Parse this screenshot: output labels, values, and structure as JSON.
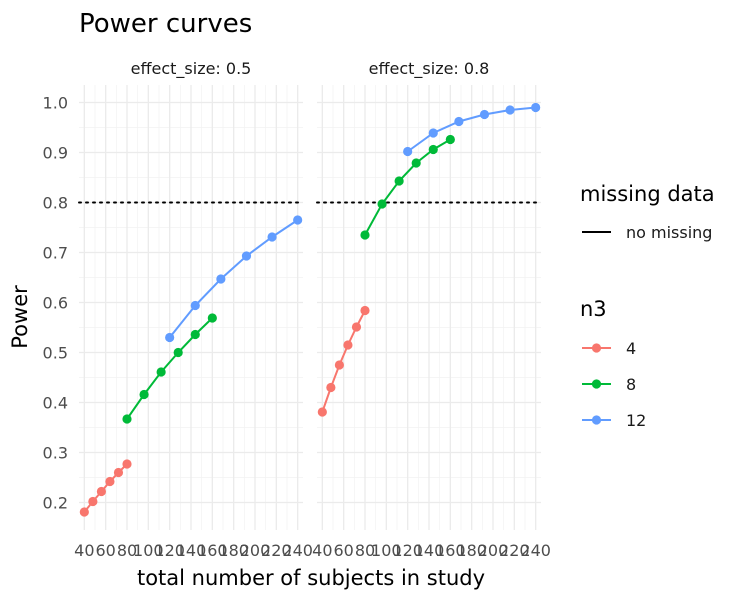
{
  "chart_data": {
    "type": "line",
    "title": "Power curves",
    "xlabel": "total number of subjects in study",
    "ylabel": "Power",
    "xlim": [
      35,
      245
    ],
    "ylim": [
      0.145,
      1.035
    ],
    "x_ticks": [
      40,
      60,
      80,
      100,
      120,
      140,
      160,
      180,
      200,
      220,
      240
    ],
    "y_ticks": [
      0.2,
      0.3,
      0.4,
      0.5,
      0.6,
      0.7,
      0.8,
      0.9,
      1.0
    ],
    "y_tick_labels": [
      "0.2",
      "0.3",
      "0.4",
      "0.5",
      "0.6",
      "0.7",
      "0.8",
      "0.9",
      "1.0"
    ],
    "reference_line": {
      "y": 0.8,
      "style": "dotted"
    },
    "grid": true,
    "facets": [
      {
        "label": "effect_size: 0.5",
        "series": [
          {
            "name": "4",
            "x": [
              40,
              48,
              56,
              64,
              72,
              80
            ],
            "y": [
              0.181,
              0.202,
              0.222,
              0.242,
              0.26,
              0.277
            ]
          },
          {
            "name": "8",
            "x": [
              80,
              96,
              112,
              128,
              144,
              160
            ],
            "y": [
              0.367,
              0.416,
              0.461,
              0.5,
              0.536,
              0.569
            ]
          },
          {
            "name": "12",
            "x": [
              120,
              144,
              168,
              192,
              216,
              240
            ],
            "y": [
              0.53,
              0.594,
              0.647,
              0.693,
              0.731,
              0.765
            ]
          }
        ]
      },
      {
        "label": "effect_size: 0.8",
        "series": [
          {
            "name": "4",
            "x": [
              40,
              48,
              56,
              64,
              72,
              80
            ],
            "y": [
              0.381,
              0.43,
              0.475,
              0.515,
              0.551,
              0.584
            ]
          },
          {
            "name": "8",
            "x": [
              80,
              96,
              112,
              128,
              144,
              160
            ],
            "y": [
              0.735,
              0.797,
              0.843,
              0.879,
              0.906,
              0.926
            ]
          },
          {
            "name": "12",
            "x": [
              120,
              144,
              168,
              192,
              216,
              240
            ],
            "y": [
              0.902,
              0.939,
              0.962,
              0.976,
              0.985,
              0.99
            ]
          }
        ]
      }
    ],
    "legend": {
      "placement": "right",
      "linetype": {
        "title": "missing data",
        "entries": [
          "no missing"
        ]
      },
      "color": {
        "title": "n3",
        "entries": [
          {
            "name": "4",
            "color": "#f8766d"
          },
          {
            "name": "8",
            "color": "#00ba38"
          },
          {
            "name": "12",
            "color": "#619cff"
          }
        ]
      }
    }
  }
}
